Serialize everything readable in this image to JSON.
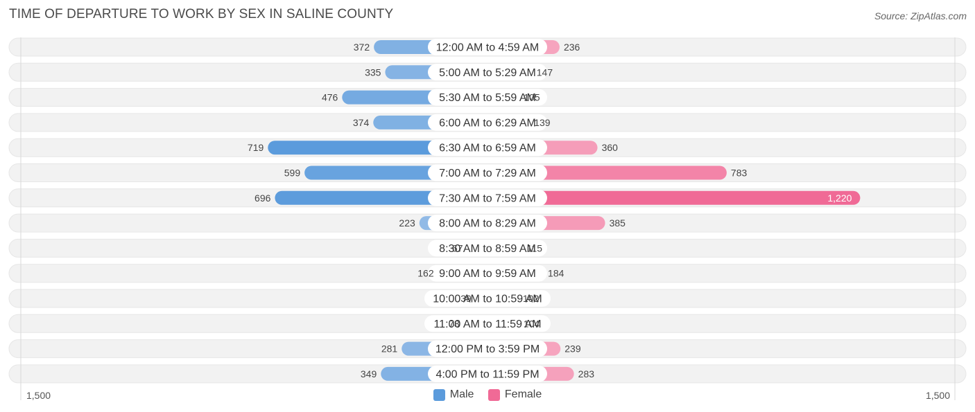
{
  "title": "TIME OF DEPARTURE TO WORK BY SEX IN SALINE COUNTY",
  "source": "Source: ZipAtlas.com",
  "axis": {
    "left_label": "1,500",
    "right_label": "1,500"
  },
  "legend": {
    "male": "Male",
    "female": "Female"
  },
  "colors": {
    "male_light": "#a9c8eb",
    "male_dark": "#5b9bdc",
    "female_light": "#f7b2c8",
    "female_dark": "#f06a96",
    "track": "#f2f2f2"
  },
  "chart_data": {
    "type": "bar",
    "orientation": "horizontal-diverging",
    "xlim": [
      -1500,
      1500
    ],
    "categories": [
      "12:00 AM to 4:59 AM",
      "5:00 AM to 5:29 AM",
      "5:30 AM to 5:59 AM",
      "6:00 AM to 6:29 AM",
      "6:30 AM to 6:59 AM",
      "7:00 AM to 7:29 AM",
      "7:30 AM to 7:59 AM",
      "8:00 AM to 8:29 AM",
      "8:30 AM to 8:59 AM",
      "9:00 AM to 9:59 AM",
      "10:00 AM to 10:59 AM",
      "11:00 AM to 11:59 AM",
      "12:00 PM to 3:59 PM",
      "4:00 PM to 11:59 PM"
    ],
    "series": [
      {
        "name": "Male",
        "values": [
          372,
          335,
          476,
          374,
          719,
          599,
          696,
          223,
          67,
          162,
          39,
          78,
          281,
          349
        ]
      },
      {
        "name": "Female",
        "values": [
          236,
          147,
          105,
          139,
          360,
          783,
          1220,
          385,
          115,
          184,
          102,
          104,
          239,
          283
        ]
      }
    ],
    "value_labels": {
      "male": [
        "372",
        "335",
        "476",
        "374",
        "719",
        "599",
        "696",
        "223",
        "67",
        "162",
        "39",
        "78",
        "281",
        "349"
      ],
      "female": [
        "236",
        "147",
        "105",
        "139",
        "360",
        "783",
        "1,220",
        "385",
        "115",
        "184",
        "102",
        "104",
        "239",
        "283"
      ]
    },
    "legend_position": "bottom-center"
  }
}
